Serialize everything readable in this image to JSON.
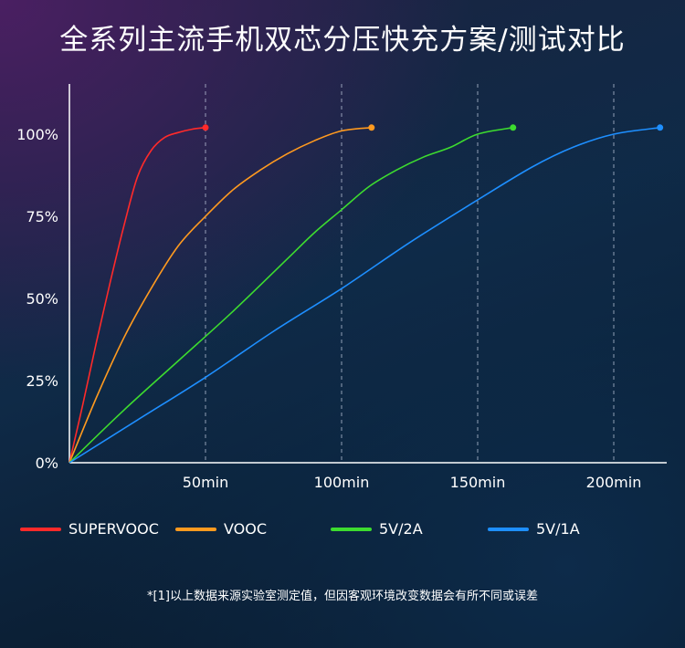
{
  "title": "全系列主流手机双芯分压快充方案/测试对比",
  "footnote": "*[1]以上数据来源实验室测定值，但因客观环境改变数据会有所不同或误差",
  "chart_data": {
    "type": "line",
    "title": "全系列主流手机双芯分压快充方案/测试对比",
    "xlabel": "",
    "ylabel": "",
    "xlim": [
      0,
      220
    ],
    "ylim": [
      0,
      100
    ],
    "x_ticks": [
      {
        "value": 50,
        "label": "50min"
      },
      {
        "value": 100,
        "label": "100min"
      },
      {
        "value": 150,
        "label": "150min"
      },
      {
        "value": 200,
        "label": "200min"
      }
    ],
    "y_ticks": [
      {
        "value": 0,
        "label": "0%"
      },
      {
        "value": 25,
        "label": "25%"
      },
      {
        "value": 50,
        "label": "50%"
      },
      {
        "value": 75,
        "label": "75%"
      },
      {
        "value": 100,
        "label": "100%"
      }
    ],
    "grid": "vertical dashed at x ticks",
    "series": [
      {
        "name": "SUPERVOOC",
        "color": "#ff2a2a",
        "x": [
          0,
          5,
          10,
          15,
          20,
          25,
          30,
          35,
          40,
          45,
          50
        ],
        "y": [
          0,
          18,
          37,
          55,
          72,
          87,
          95,
          99,
          100.5,
          101.5,
          102
        ]
      },
      {
        "name": "VOOC",
        "color": "#ff9a1f",
        "x": [
          0,
          10,
          20,
          30,
          40,
          50,
          60,
          70,
          80,
          90,
          100,
          111
        ],
        "y": [
          0,
          20,
          38,
          53,
          66,
          75,
          83,
          89,
          94,
          98,
          101,
          102
        ]
      },
      {
        "name": "5V/2A",
        "color": "#3ddc2f",
        "x": [
          0,
          20,
          40,
          60,
          80,
          90,
          100,
          110,
          120,
          130,
          140,
          150,
          163
        ],
        "y": [
          0,
          16,
          31,
          46,
          62,
          70,
          77,
          84,
          89,
          93,
          96,
          100,
          102
        ]
      },
      {
        "name": "5V/1A",
        "color": "#1e8fff",
        "x": [
          0,
          25,
          50,
          75,
          100,
          125,
          150,
          170,
          185,
          200,
          217
        ],
        "y": [
          0,
          13,
          26,
          40,
          53,
          67,
          80,
          90,
          96,
          100,
          102
        ]
      }
    ]
  }
}
